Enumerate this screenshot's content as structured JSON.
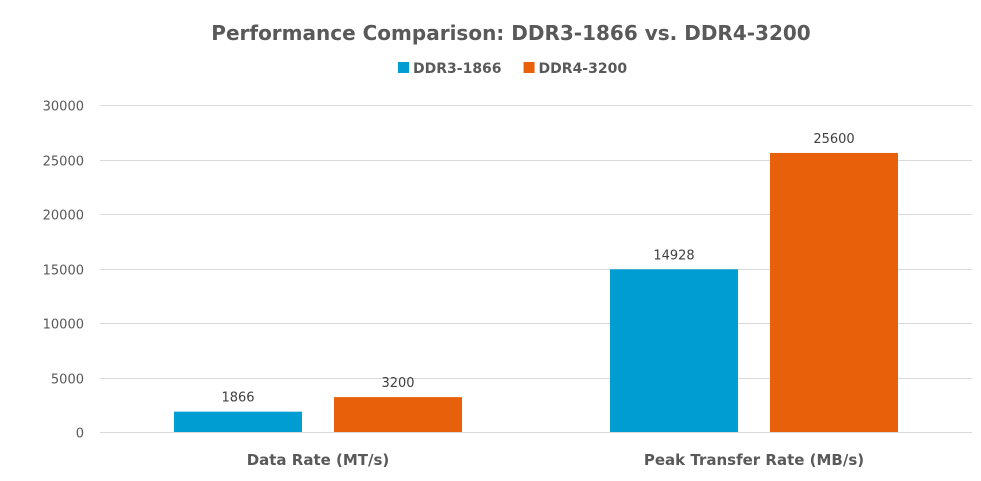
{
  "chart_data": {
    "type": "bar",
    "title": "Performance Comparison: DDR3-1866 vs. DDR4-3200",
    "xlabel": "",
    "ylabel": "",
    "categories": [
      "Data Rate (MT/s)",
      "Peak Transfer Rate (MB/s)"
    ],
    "series": [
      {
        "name": "DDR3-1866",
        "color": "#009DD3",
        "values": [
          1866,
          14928
        ]
      },
      {
        "name": "DDR4-3200",
        "color": "#E8600A",
        "values": [
          3200,
          25600
        ]
      }
    ],
    "ylim": [
      0,
      30000
    ],
    "yticks": [
      0,
      5000,
      10000,
      15000,
      20000,
      25000,
      30000
    ],
    "grid": true,
    "legend_position": "top-center",
    "data_labels": true
  }
}
